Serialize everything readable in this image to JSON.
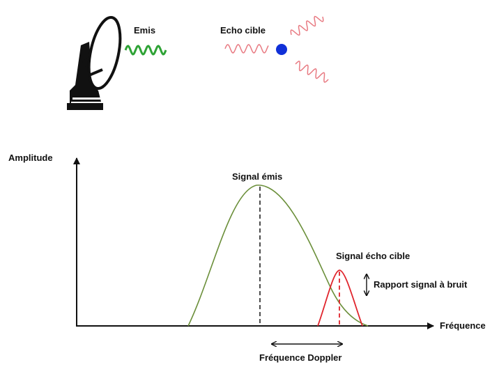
{
  "labels": {
    "emitted": "Emis",
    "echo": "Echo cible",
    "y_axis": "Amplitude",
    "x_axis": "Fréquence",
    "signal_emitted": "Signal émis",
    "signal_echo": "Signal écho cible",
    "snr": "Rapport signal à bruit",
    "doppler": "Fréquence Doppler"
  },
  "colors": {
    "emitted_wave": "#2fa336",
    "echo_wave": "#e87a82",
    "target": "#1030d8",
    "emitted_curve": "#6b8f3a",
    "echo_curve": "#e0242c",
    "axis": "#111111"
  },
  "icons": [
    "radar-dish-icon",
    "target-dot-icon"
  ]
}
